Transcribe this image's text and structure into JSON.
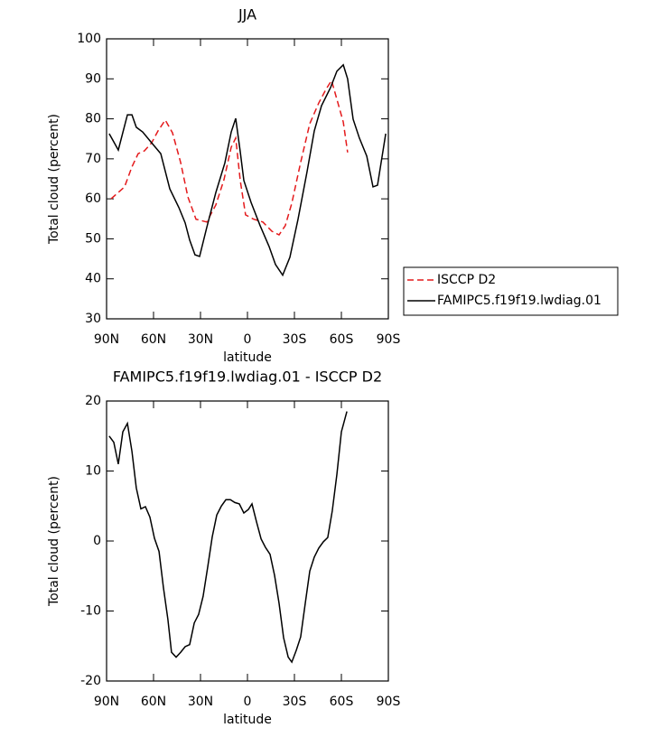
{
  "chart_data": [
    {
      "type": "line",
      "title": "JJA",
      "x_label": "latitude",
      "y_label": "Total cloud (percent)",
      "xlim": [
        90,
        -90
      ],
      "xticks": [
        {
          "value": 90,
          "label": "90N"
        },
        {
          "value": 60,
          "label": "60N"
        },
        {
          "value": 30,
          "label": "30N"
        },
        0,
        {
          "value": -30,
          "label": "30S"
        },
        {
          "value": -60,
          "label": "60S"
        },
        {
          "value": -90,
          "label": "90S"
        }
      ],
      "ylim": [
        30,
        100
      ],
      "yticks": [
        30,
        40,
        50,
        60,
        70,
        80,
        90,
        100
      ],
      "legend": "right",
      "series": [
        {
          "name": "ISCCP D2",
          "color": "#e41a1c",
          "dash": "dashed",
          "x": [
            87.1,
            82.5,
            78.5,
            73.8,
            69.8,
            65.8,
            61.2,
            57.1,
            52.5,
            47.9,
            42.7,
            38.1,
            32.9,
            26,
            20.2,
            15,
            10.4,
            7.5,
            4.6,
            1.2,
            -4,
            -9.8,
            -15.6,
            -20.2,
            -24.2,
            -28.3,
            -34,
            -39.8,
            -45.6,
            -50.2,
            -53.7,
            -57.1,
            -61.2,
            -64
          ],
          "values": [
            60,
            61.6,
            63,
            68,
            71.3,
            72,
            74,
            77,
            79.7,
            76.5,
            69.1,
            60.5,
            54.9,
            54.2,
            58.5,
            64.8,
            72.9,
            75.2,
            64.6,
            56,
            54.9,
            54.2,
            51.9,
            51,
            53.3,
            58.9,
            69.1,
            78.8,
            84,
            87.4,
            89.6,
            84.9,
            79.2,
            71.6
          ]
        },
        {
          "name": "FAMIPC5.f19f19.lwdiag.01",
          "color": "#000000",
          "dash": "solid",
          "x": [
            88.3,
            82.5,
            76.7,
            73.8,
            71,
            66.9,
            61.2,
            55.4,
            49.6,
            43.8,
            39.8,
            36.9,
            33.5,
            30.6,
            26,
            20.2,
            14.4,
            10.4,
            7.5,
            4.6,
            2.3,
            -2.3,
            -8.1,
            -13.8,
            -17.9,
            -22.5,
            -27.1,
            -32.3,
            -38.1,
            -42.7,
            -47.3,
            -53.1,
            -57.1,
            -61.2,
            -64,
            -67.5,
            -71.5,
            -76.2,
            -80.2,
            -83.1,
            -88.3
          ],
          "values": [
            76.3,
            72.2,
            81,
            81,
            77.9,
            76.7,
            74,
            71.3,
            62.5,
            57.8,
            54,
            49.7,
            46,
            45.6,
            52.8,
            61.6,
            69,
            76.7,
            80.1,
            71.8,
            64.6,
            59.1,
            53.3,
            48.1,
            43.6,
            40.9,
            45.4,
            54.9,
            66.8,
            77,
            83.3,
            87.8,
            91.9,
            93.5,
            90,
            79.9,
            75.2,
            70.7,
            63,
            63.4,
            76.3
          ]
        }
      ]
    },
    {
      "type": "line",
      "title": "FAMIPC5.f19f19.lwdiag.01 - ISCCP D2",
      "x_label": "latitude",
      "y_label": "Total cloud (percent)",
      "xlim": [
        90,
        -90
      ],
      "xticks": [
        {
          "value": 90,
          "label": "90N"
        },
        {
          "value": 60,
          "label": "60N"
        },
        {
          "value": 30,
          "label": "30N"
        },
        0,
        {
          "value": -30,
          "label": "30S"
        },
        {
          "value": -60,
          "label": "60S"
        },
        {
          "value": -90,
          "label": "90S"
        }
      ],
      "ylim": [
        -20,
        20
      ],
      "yticks": [
        -20,
        -10,
        0,
        10,
        20
      ],
      "series": [
        {
          "color": "#000000",
          "dash": "solid",
          "x": [
            88.3,
            85.4,
            82.5,
            79.6,
            76.7,
            73.8,
            71,
            68.1,
            65.2,
            62.3,
            59.4,
            56.5,
            53.7,
            50.8,
            48.5,
            45.6,
            42.7,
            39.8,
            36.9,
            34,
            31.2,
            28.3,
            25.4,
            22.5,
            19.6,
            16.7,
            13.8,
            10.9,
            8.1,
            5.2,
            2.3,
            -0.6,
            -2.9,
            -5.8,
            -8.7,
            -11.5,
            -14.4,
            -17.3,
            -20.2,
            -23.1,
            -26,
            -28.3,
            -31.2,
            -34,
            -36.9,
            -39.8,
            -42.7,
            -45.6,
            -48.5,
            -51.3,
            -54.2,
            -57.1,
            -60,
            -63.5
          ],
          "values": [
            15,
            14.1,
            11,
            15.6,
            16.8,
            12.8,
            7.6,
            4.6,
            4.9,
            3.4,
            0.4,
            -1.5,
            -6.6,
            -11.2,
            -15.9,
            -16.6,
            -15.9,
            -15.1,
            -14.8,
            -11.7,
            -10.5,
            -7.9,
            -3.7,
            0.6,
            3.7,
            5,
            5.9,
            5.9,
            5.5,
            5.3,
            4,
            4.5,
            5.3,
            2.7,
            0.3,
            -0.9,
            -1.9,
            -4.9,
            -8.9,
            -13.8,
            -16.6,
            -17.3,
            -15.6,
            -13.7,
            -8.9,
            -4.3,
            -2.3,
            -1,
            -0.1,
            0.5,
            4.3,
            9.5,
            15.6,
            18.5
          ]
        }
      ]
    }
  ]
}
